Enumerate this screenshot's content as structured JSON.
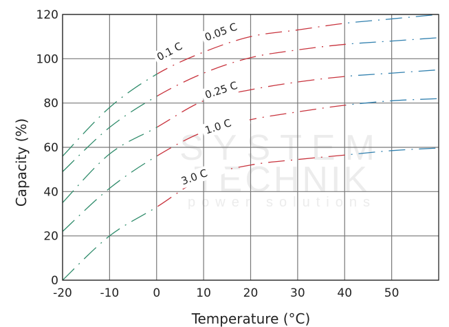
{
  "chart_data": {
    "type": "line",
    "xlabel": "Temperature (°C)",
    "ylabel": "Capacity (%)",
    "xlim": [
      -20,
      60
    ],
    "ylim": [
      0,
      120
    ],
    "xticks": [
      "-20",
      "-10",
      "0",
      "10",
      "20",
      "30",
      "40",
      "50"
    ],
    "yticks": [
      "0",
      "20",
      "40",
      "60",
      "80",
      "100",
      "120"
    ],
    "grid": true,
    "line_style": "dash-dot",
    "segment_colors": {
      "below_0C": "#2e8b6a",
      "0_to_40C": "#c8323c",
      "above_40C": "#2f7fae"
    },
    "x": [
      -20,
      -10,
      0,
      10,
      20,
      30,
      40,
      50,
      60
    ],
    "series": [
      {
        "name": "0.05 C",
        "values": [
          56,
          78,
          93,
          103,
          110,
          113,
          116,
          118,
          120
        ]
      },
      {
        "name": "0.1 C",
        "values": [
          49,
          69,
          83,
          93.5,
          100.5,
          104,
          106.5,
          108,
          109.5
        ]
      },
      {
        "name": "0.25 C",
        "values": [
          35,
          57,
          69,
          81,
          86,
          89.5,
          92,
          93.5,
          95
        ]
      },
      {
        "name": "1.0 C",
        "values": [
          22,
          41.5,
          56,
          67,
          72.5,
          76,
          79,
          81,
          82
        ]
      },
      {
        "name": "3.0 C",
        "values": [
          0,
          20,
          33,
          46.5,
          52,
          54.5,
          56.5,
          58.5,
          59.7
        ]
      }
    ]
  },
  "watermark": {
    "line1": "SYSTEM",
    "line2": "TECHNIK",
    "line3": "power solutions"
  }
}
